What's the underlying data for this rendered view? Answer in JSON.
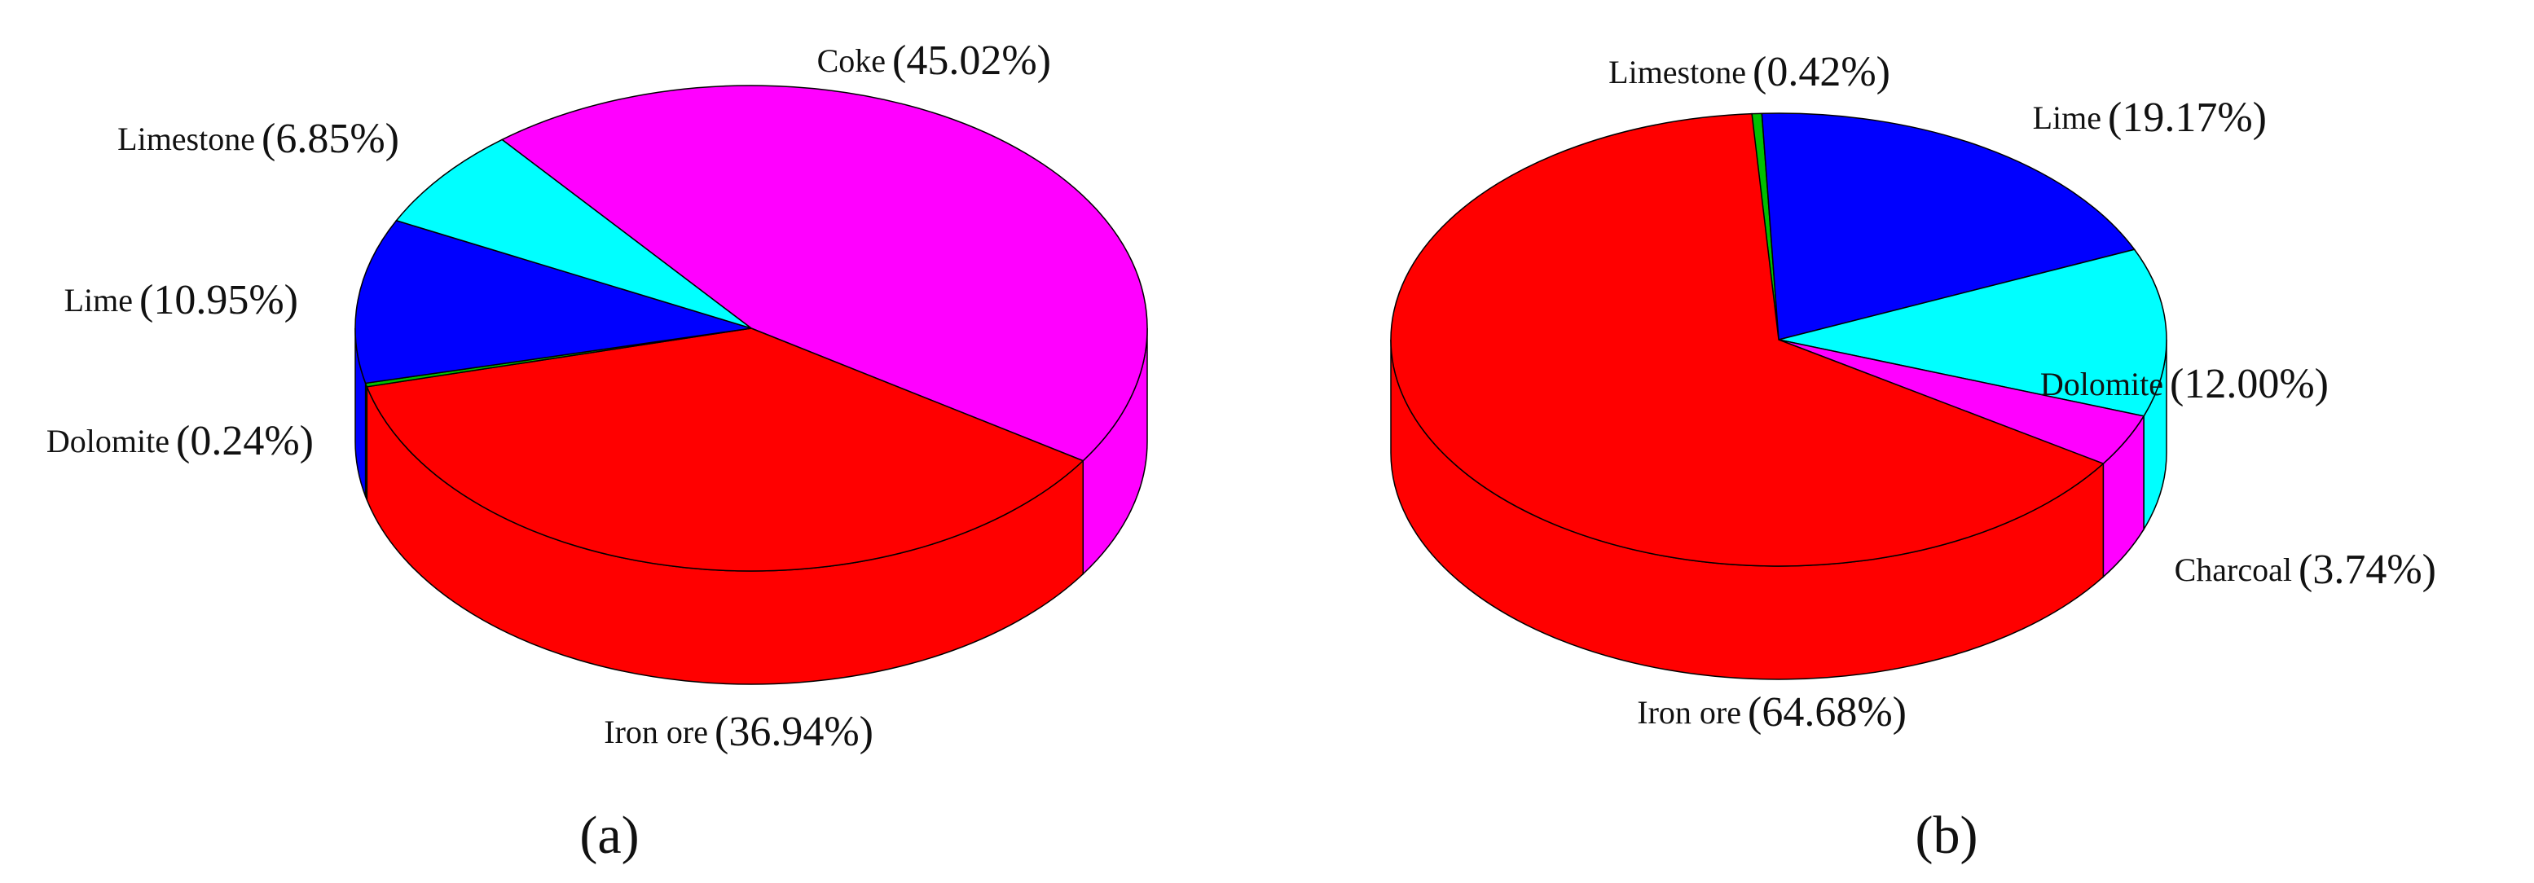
{
  "chart_data": [
    {
      "type": "pie",
      "panel_label": "(a)",
      "categories": [
        "Coke",
        "Iron ore",
        "Dolomite",
        "Lime",
        "Limestone"
      ],
      "values": [
        45.02,
        36.94,
        0.24,
        10.95,
        6.85
      ],
      "value_labels": [
        "(45.02%)",
        "(36.94%)",
        "(0.24%)",
        "(10.95%)",
        "(6.85%)"
      ],
      "colors": [
        "#ff00ff",
        "#ff0000",
        "#00c000",
        "#0000ff",
        "#00ffff"
      ]
    },
    {
      "type": "pie",
      "panel_label": "(b)",
      "categories": [
        "Limestone",
        "Lime",
        "Dolomite",
        "Charcoal",
        "Iron ore"
      ],
      "values": [
        0.42,
        19.17,
        12.0,
        3.74,
        64.68
      ],
      "value_labels": [
        "(0.42%)",
        "(19.17%)",
        "(12.00%)",
        "(3.74%)",
        "(64.68%)"
      ],
      "colors": [
        "#00c000",
        "#0000ff",
        "#00ffff",
        "#ff00ff",
        "#ff0000"
      ]
    }
  ]
}
